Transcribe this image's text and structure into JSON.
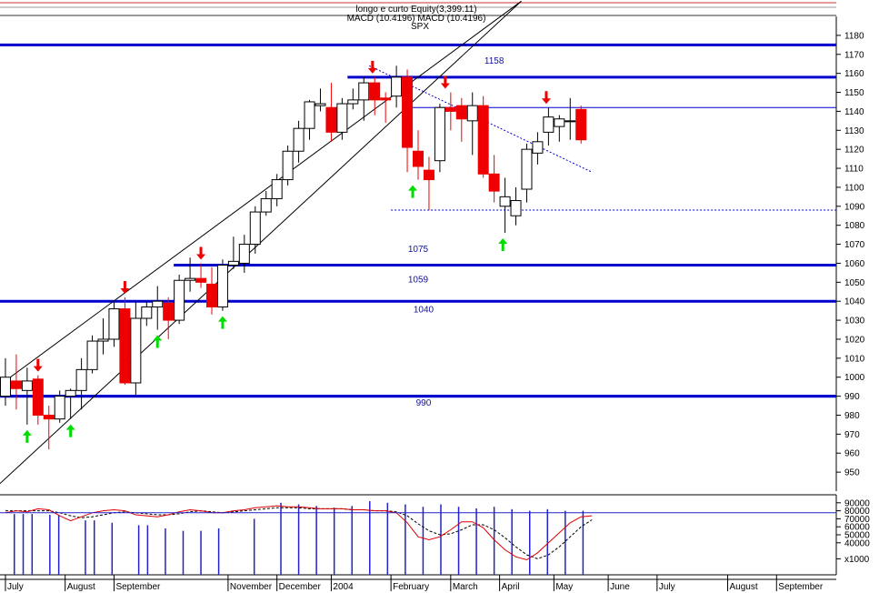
{
  "header": {
    "line1": "longo e curto Equity(3,399.11)",
    "line2": "MACD (10.4196) MACD (10.4196)",
    "line3": "SPX"
  },
  "colors": {
    "level_line": "#0000cc",
    "bear": "#ee0000",
    "bull": "#ffffff",
    "arrow_down": "#ee0000",
    "arrow_up": "#00dd00",
    "macd": "#dd0000",
    "signal": "#000000",
    "volume": "#2222cc"
  },
  "chart_data": {
    "type": "candlestick",
    "price_axis": {
      "ylim": [
        940,
        1190
      ],
      "ticks": [
        950,
        960,
        970,
        980,
        990,
        1000,
        1010,
        1020,
        1030,
        1040,
        1050,
        1060,
        1070,
        1080,
        1090,
        1100,
        1110,
        1120,
        1130,
        1140,
        1150,
        1160,
        1170,
        1180
      ]
    },
    "volume_axis": {
      "ylim": [
        0,
        100000
      ],
      "ticks": [
        {
          "value": 90000,
          "label": "90000"
        },
        {
          "value": 80000,
          "label": "80000"
        },
        {
          "value": 70000,
          "label": "70000"
        },
        {
          "value": 60000,
          "label": "60000"
        },
        {
          "value": 50000,
          "label": "50000"
        },
        {
          "value": 40000,
          "label": "40000"
        },
        {
          "value": 20000,
          "label": "x1000"
        }
      ]
    },
    "x_range": [
      -0.5,
      76.5
    ],
    "months": [
      {
        "label": "July",
        "week": 0
      },
      {
        "label": "August",
        "week": 5.5
      },
      {
        "label": "September",
        "week": 10
      },
      {
        "label": "November",
        "week": 20.5
      },
      {
        "label": "December",
        "week": 25
      },
      {
        "label": "2004",
        "week": 30
      },
      {
        "label": "February",
        "week": 35.5
      },
      {
        "label": "March",
        "week": 41
      },
      {
        "label": "April",
        "week": 45.5
      },
      {
        "label": "May",
        "week": 50.5
      },
      {
        "label": "June",
        "week": 55.5
      },
      {
        "label": "July",
        "week": 60
      },
      {
        "label": "August",
        "week": 66.5
      },
      {
        "label": "September",
        "week": 71
      }
    ],
    "levels": [
      {
        "value": 1175,
        "label": "1158",
        "label_value": 1165,
        "from": -0.5,
        "to": 76.5
      },
      {
        "value": 1158,
        "label": "",
        "from": 31.5,
        "to": 76.5
      },
      {
        "value": 1059,
        "label": "1075",
        "label_value": 1066,
        "from": 15.5,
        "to": 76.5
      },
      {
        "value": 1040,
        "label": "1059",
        "label_value": 1050,
        "from": -0.5,
        "to": 76.5
      },
      {
        "value": 990,
        "label": "1040",
        "label_value": 1034,
        "from": -0.5,
        "to": 76.5
      },
      {
        "value": 990,
        "label": "990",
        "label_value": 985,
        "from": -0.5,
        "to": 76.5
      }
    ],
    "label_x_week": {
      "1158": 45,
      "1075": 38,
      "1059": 38,
      "1040": 38.5,
      "990": 38.5
    },
    "candles": [
      {
        "o": 990,
        "h": 1010,
        "l": 985,
        "c": 1000
      },
      {
        "o": 998,
        "h": 1012,
        "l": 983,
        "c": 994
      },
      {
        "o": 993,
        "h": 1005,
        "l": 975,
        "c": 998
      },
      {
        "o": 999,
        "h": 1001,
        "l": 975,
        "c": 980
      },
      {
        "o": 980,
        "h": 985,
        "l": 962,
        "c": 978
      },
      {
        "o": 978,
        "h": 993,
        "l": 976,
        "c": 990
      },
      {
        "o": 990,
        "h": 994,
        "l": 978,
        "c": 993
      },
      {
        "o": 993,
        "h": 1010,
        "l": 983,
        "c": 1004
      },
      {
        "o": 1004,
        "h": 1022,
        "l": 1002,
        "c": 1019
      },
      {
        "o": 1019,
        "h": 1031,
        "l": 1012,
        "c": 1020
      },
      {
        "o": 1020,
        "h": 1040,
        "l": 1016,
        "c": 1036
      },
      {
        "o": 1036,
        "h": 1042,
        "l": 996,
        "c": 997
      },
      {
        "o": 997,
        "h": 1040,
        "l": 990,
        "c": 1031
      },
      {
        "o": 1031,
        "h": 1040,
        "l": 1027,
        "c": 1037
      },
      {
        "o": 1037,
        "h": 1048,
        "l": 1025,
        "c": 1040
      },
      {
        "o": 1039,
        "h": 1042,
        "l": 1020,
        "c": 1030
      },
      {
        "o": 1030,
        "h": 1054,
        "l": 1028,
        "c": 1051
      },
      {
        "o": 1051,
        "h": 1063,
        "l": 1045,
        "c": 1052
      },
      {
        "o": 1052,
        "h": 1060,
        "l": 1047,
        "c": 1050
      },
      {
        "o": 1049,
        "h": 1058,
        "l": 1033,
        "c": 1037
      },
      {
        "o": 1037,
        "h": 1062,
        "l": 1035,
        "c": 1059
      },
      {
        "o": 1059,
        "h": 1074,
        "l": 1057,
        "c": 1061
      },
      {
        "o": 1060,
        "h": 1075,
        "l": 1055,
        "c": 1070
      },
      {
        "o": 1070,
        "h": 1090,
        "l": 1065,
        "c": 1087
      },
      {
        "o": 1087,
        "h": 1098,
        "l": 1085,
        "c": 1094
      },
      {
        "o": 1094,
        "h": 1107,
        "l": 1090,
        "c": 1104
      },
      {
        "o": 1104,
        "h": 1122,
        "l": 1101,
        "c": 1119
      },
      {
        "o": 1119,
        "h": 1135,
        "l": 1113,
        "c": 1131
      },
      {
        "o": 1131,
        "h": 1146,
        "l": 1125,
        "c": 1145
      },
      {
        "o": 1143,
        "h": 1152,
        "l": 1140,
        "c": 1144
      },
      {
        "o": 1142,
        "h": 1155,
        "l": 1124,
        "c": 1129
      },
      {
        "o": 1129,
        "h": 1147,
        "l": 1125,
        "c": 1144
      },
      {
        "o": 1144,
        "h": 1152,
        "l": 1141,
        "c": 1146
      },
      {
        "o": 1146,
        "h": 1158,
        "l": 1135,
        "c": 1155
      },
      {
        "o": 1155,
        "h": 1158,
        "l": 1138,
        "c": 1146
      },
      {
        "o": 1147,
        "h": 1150,
        "l": 1134,
        "c": 1146
      },
      {
        "o": 1148,
        "h": 1164,
        "l": 1142,
        "c": 1158
      },
      {
        "o": 1158,
        "h": 1162,
        "l": 1108,
        "c": 1121
      },
      {
        "o": 1119,
        "h": 1130,
        "l": 1104,
        "c": 1111
      },
      {
        "o": 1109,
        "h": 1116,
        "l": 1088,
        "c": 1104
      },
      {
        "o": 1114,
        "h": 1144,
        "l": 1108,
        "c": 1142
      },
      {
        "o": 1142,
        "h": 1150,
        "l": 1130,
        "c": 1140
      },
      {
        "o": 1143,
        "h": 1147,
        "l": 1124,
        "c": 1136
      },
      {
        "o": 1135,
        "h": 1150,
        "l": 1117,
        "c": 1143
      },
      {
        "o": 1143,
        "h": 1148,
        "l": 1105,
        "c": 1107
      },
      {
        "o": 1107,
        "h": 1117,
        "l": 1092,
        "c": 1098
      },
      {
        "o": 1090,
        "h": 1105,
        "l": 1076,
        "c": 1095
      },
      {
        "o": 1085,
        "h": 1100,
        "l": 1080,
        "c": 1093
      },
      {
        "o": 1099,
        "h": 1123,
        "l": 1092,
        "c": 1120
      },
      {
        "o": 1118,
        "h": 1129,
        "l": 1112,
        "c": 1124
      },
      {
        "o": 1129,
        "h": 1142,
        "l": 1122,
        "c": 1137
      },
      {
        "o": 1132,
        "h": 1138,
        "l": 1124,
        "c": 1136
      },
      {
        "o": 1135,
        "h": 1147,
        "l": 1125,
        "c": 1135
      },
      {
        "o": 1141,
        "h": 1143,
        "l": 1123,
        "c": 1125
      }
    ],
    "signals": [
      {
        "week": 3,
        "type": "sell"
      },
      {
        "week": 2,
        "type": "buy"
      },
      {
        "week": 6,
        "type": "buy"
      },
      {
        "week": 11,
        "type": "sell"
      },
      {
        "week": 14,
        "type": "buy"
      },
      {
        "week": 18,
        "type": "sell"
      },
      {
        "week": 20,
        "type": "buy"
      },
      {
        "week": 33.8,
        "type": "sell"
      },
      {
        "week": 37.5,
        "type": "buy"
      },
      {
        "week": 40.5,
        "type": "sell"
      },
      {
        "week": 45.8,
        "type": "buy"
      },
      {
        "week": 49.8,
        "type": "sell"
      }
    ],
    "trend_lines": [
      {
        "x1": -0.5,
        "y1": 996,
        "x2": 47.5,
        "y2": 1198,
        "style": "solid"
      },
      {
        "x1": -0.5,
        "y1": 944,
        "x2": 47.5,
        "y2": 1198,
        "style": "solid"
      },
      {
        "x1": 33.5,
        "y1": 1164,
        "x2": 54,
        "y2": 1108,
        "style": "dotted"
      },
      {
        "x1": 35.5,
        "y1": 1088,
        "x2": 76.5,
        "y2": 1088,
        "style": "dotted"
      },
      {
        "x1": 36.5,
        "y1": 1142,
        "x2": 76.5,
        "y2": 1142,
        "style": "thin"
      }
    ],
    "volume": [
      0,
      76000,
      76000,
      76000,
      0,
      75000,
      75000,
      0,
      0,
      68000,
      68000,
      0,
      65000,
      0,
      0,
      62000,
      62000,
      0,
      58000,
      0,
      55000,
      0,
      55000,
      0,
      58000,
      0,
      0,
      0,
      70000,
      0,
      0,
      90000,
      0,
      88000,
      0,
      86000,
      0,
      84000,
      0,
      86000,
      0,
      92000,
      0,
      90000,
      0,
      88000,
      0,
      85000,
      0,
      88000,
      0,
      85000,
      0,
      83000,
      0,
      85000,
      0,
      82000,
      0,
      80000,
      0,
      82000,
      0,
      80000,
      0,
      80000
    ],
    "macd": [
      82000,
      84000,
      83000,
      86000,
      85000,
      79000,
      74000,
      78000,
      82000,
      84000,
      85000,
      84000,
      80000,
      79000,
      78000,
      80000,
      83000,
      85000,
      84000,
      82000,
      82000,
      84000,
      85000,
      87000,
      88000,
      89000,
      88000,
      88000,
      87000,
      86000,
      86000,
      86000,
      85000,
      85000,
      84000,
      84000,
      82000,
      72000,
      58000,
      55000,
      58000,
      65000,
      73000,
      73000,
      67000,
      55000,
      45000,
      38000,
      35000,
      42000,
      52000,
      62000,
      72000,
      78000,
      79000
    ],
    "signal": [
      84000,
      84000,
      84000,
      84000,
      84000,
      82000,
      79000,
      77000,
      78000,
      80000,
      82000,
      83000,
      82000,
      81000,
      80000,
      80000,
      81000,
      83000,
      84000,
      83000,
      82000,
      83000,
      84000,
      85000,
      86000,
      87000,
      87000,
      87000,
      86000,
      86000,
      86000,
      86000,
      85000,
      85000,
      84000,
      84000,
      83000,
      79000,
      71000,
      64000,
      60000,
      61000,
      65000,
      70000,
      70000,
      65000,
      57000,
      48000,
      40000,
      36000,
      40000,
      48000,
      58000,
      68000,
      75000
    ],
    "hidden_macd_trace_top": [
      82000,
      83000,
      84000,
      84000,
      84000,
      82000,
      80000,
      79000,
      80000,
      81000,
      82000,
      82000,
      81000,
      81000,
      80000,
      80000,
      80000,
      81000,
      81000,
      80000,
      80000,
      81000,
      81000,
      82000,
      82000,
      82000,
      82000,
      82000,
      82000,
      82000,
      82000,
      82000,
      82000,
      82000,
      82000,
      82000,
      82000,
      82000,
      82000,
      82000,
      82000,
      82000,
      82000,
      82000,
      82000,
      82000,
      82000,
      82000,
      82000,
      82000,
      82000,
      82000,
      82000,
      82000,
      82000
    ],
    "macd_ylim": [
      20000,
      100000
    ]
  }
}
